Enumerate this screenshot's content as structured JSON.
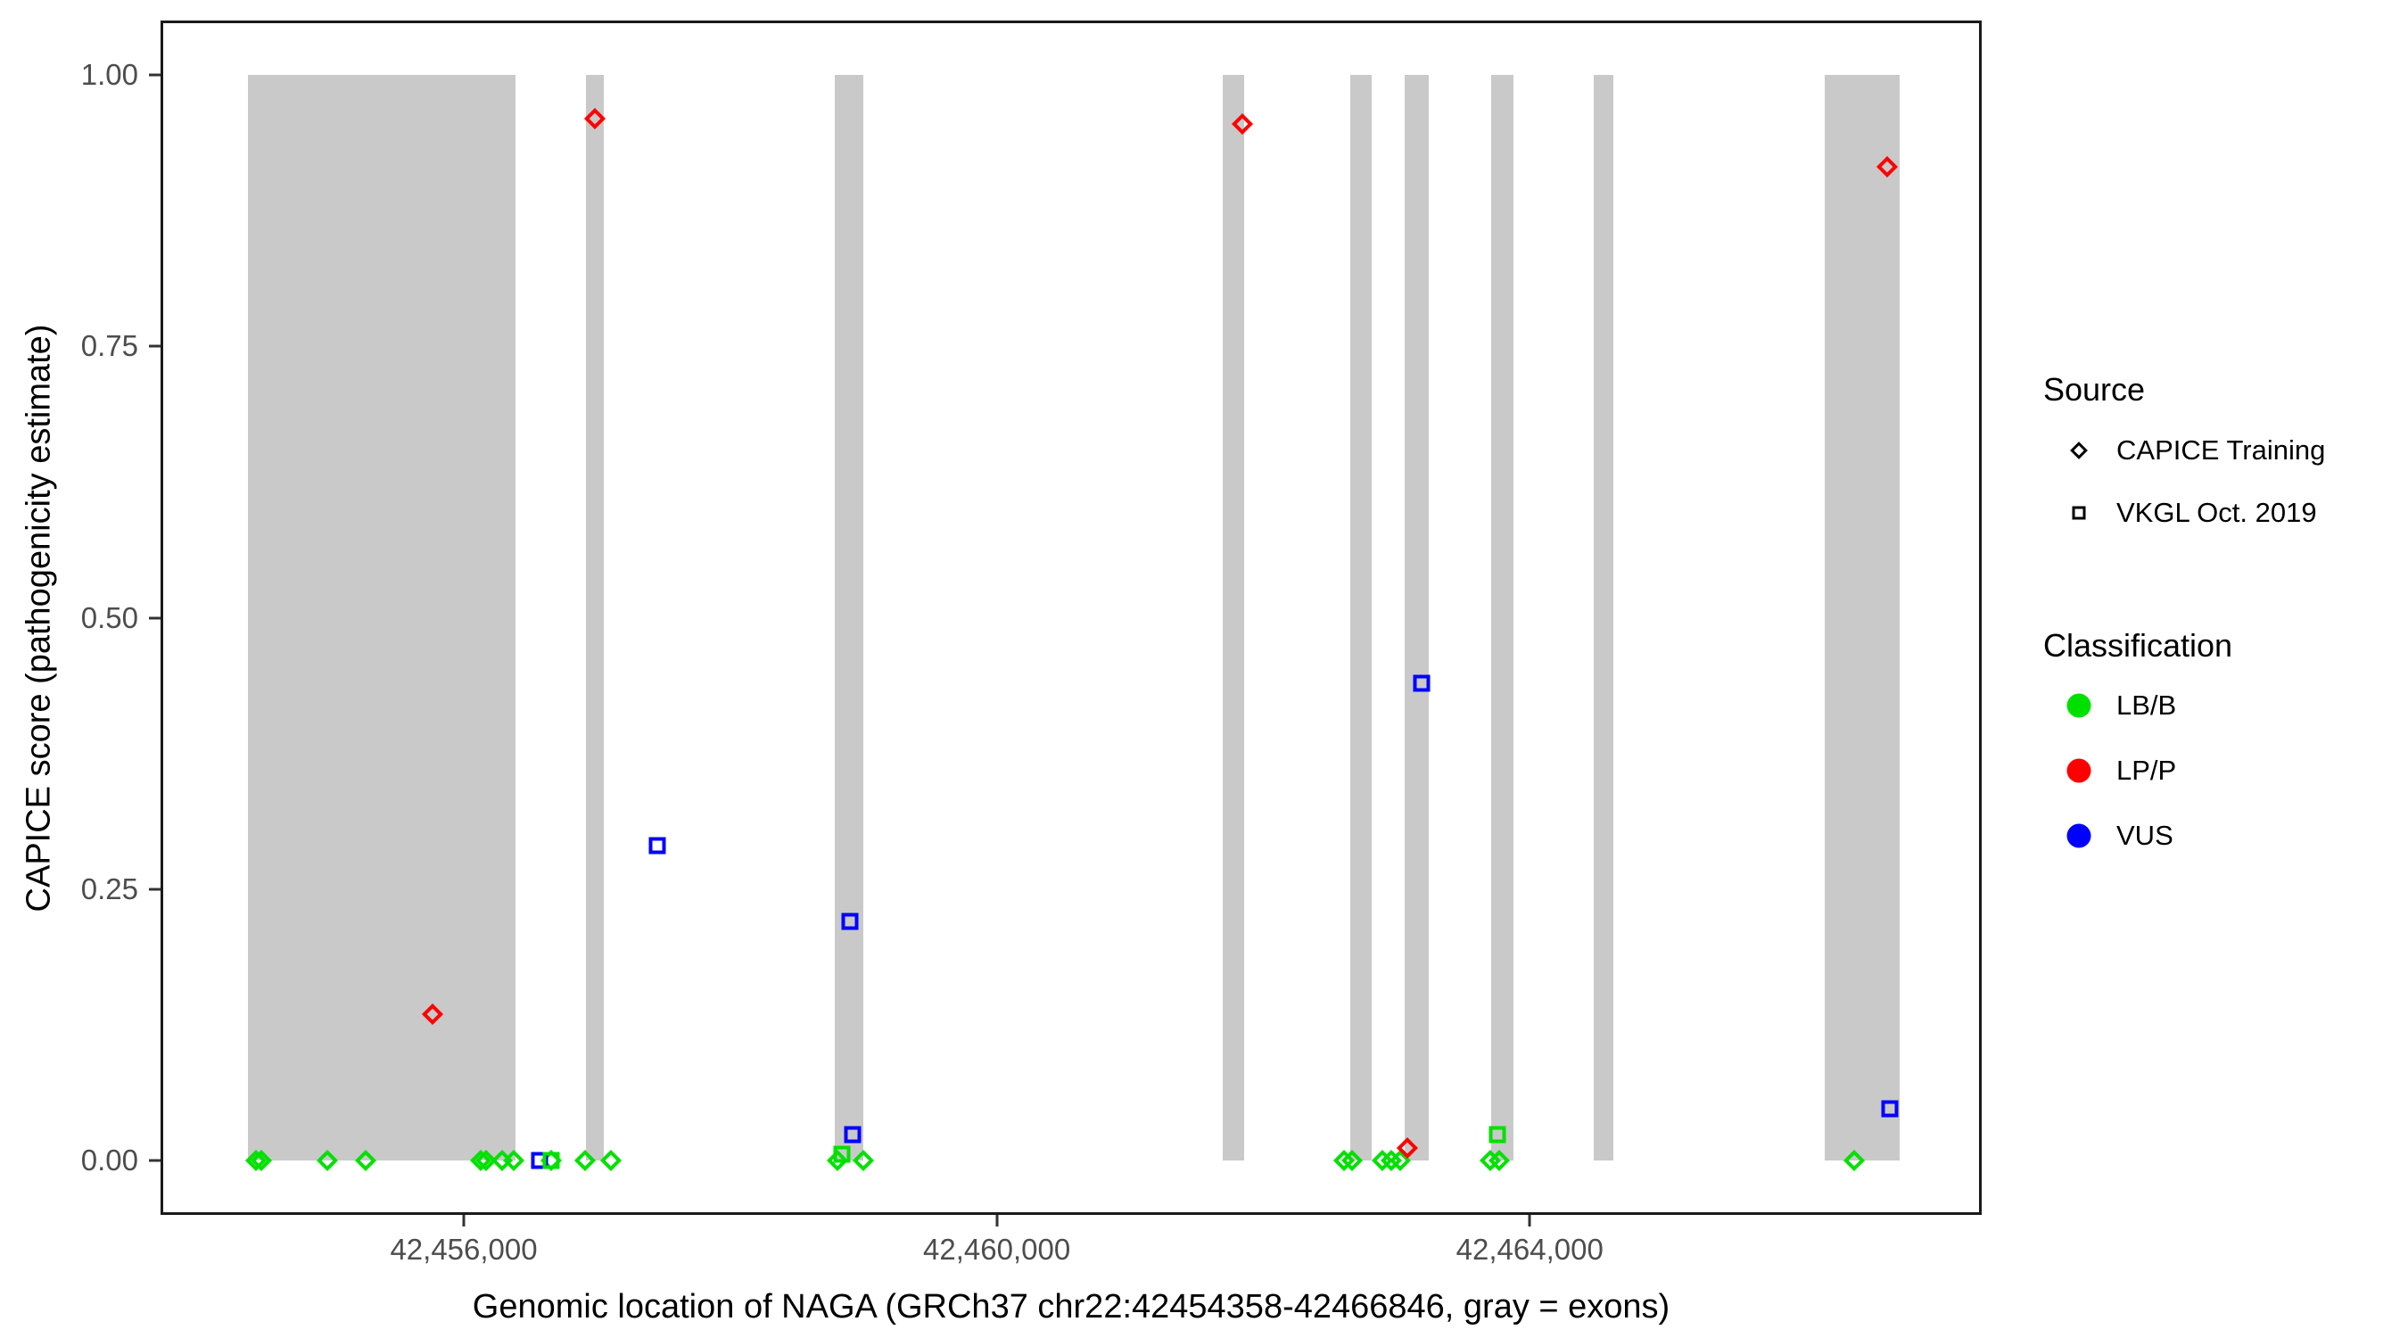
{
  "chart_data": {
    "type": "scatter",
    "x_axis": {
      "label": "Genomic location of NAGA (GRCh37 chr22:42454358-42466846, gray = exons)",
      "range_bp": [
        42453724,
        42467392
      ],
      "ticks": [
        {
          "bp": 42456000,
          "label": "42,456,000"
        },
        {
          "bp": 42460000,
          "label": "42,460,000"
        },
        {
          "bp": 42464000,
          "label": "42,464,000"
        }
      ]
    },
    "y_axis": {
      "label": "CAPICE score (pathogenicity estimate)",
      "range": [
        -0.05,
        1.05
      ],
      "ticks": [
        {
          "v": 0.0,
          "label": "0.00"
        },
        {
          "v": 0.25,
          "label": "0.25"
        },
        {
          "v": 0.5,
          "label": "0.50"
        },
        {
          "v": 0.75,
          "label": "0.75"
        },
        {
          "v": 1.0,
          "label": "1.00"
        }
      ]
    },
    "exon_note": "gray bands = exons of NAGA",
    "exon_color": "#c9c9c9",
    "exons_bp": [
      [
        42454380,
        42456390
      ],
      [
        42456917,
        42457051
      ],
      [
        42458785,
        42459000
      ],
      [
        42461696,
        42461857
      ],
      [
        42462653,
        42462814
      ],
      [
        42463063,
        42463243
      ],
      [
        42463712,
        42463879
      ],
      [
        42464480,
        42464630
      ],
      [
        42466214,
        42466777
      ]
    ],
    "classification_colors": {
      "LB/B": "#00e000",
      "LP/P": "#ff0000",
      "VUS": "#0000ff"
    },
    "series": [
      {
        "name": "CAPICE Training",
        "marker": "diamond",
        "points": [
          {
            "bp": 42454440,
            "score": 0.0,
            "classification": "LB/B"
          },
          {
            "bp": 42454478,
            "score": 0.0,
            "classification": "LB/B"
          },
          {
            "bp": 42454976,
            "score": 0.0,
            "classification": "LB/B"
          },
          {
            "bp": 42455264,
            "score": 0.0,
            "classification": "LB/B"
          },
          {
            "bp": 42456130,
            "score": 0.0,
            "classification": "LB/B"
          },
          {
            "bp": 42456168,
            "score": 0.0,
            "classification": "LB/B"
          },
          {
            "bp": 42456290,
            "score": 0.0,
            "classification": "LB/B"
          },
          {
            "bp": 42456375,
            "score": 0.0,
            "classification": "LB/B"
          },
          {
            "bp": 42456656,
            "score": 0.0,
            "classification": "LB/B"
          },
          {
            "bp": 42456910,
            "score": 0.0,
            "classification": "LB/B"
          },
          {
            "bp": 42457104,
            "score": 0.0,
            "classification": "LB/B"
          },
          {
            "bp": 42458805,
            "score": 0.0,
            "classification": "LB/B"
          },
          {
            "bp": 42458999,
            "score": 0.0,
            "classification": "LB/B"
          },
          {
            "bp": 42462608,
            "score": 0.0,
            "classification": "LB/B"
          },
          {
            "bp": 42462665,
            "score": 0.0,
            "classification": "LB/B"
          },
          {
            "bp": 42462895,
            "score": 0.0,
            "classification": "LB/B"
          },
          {
            "bp": 42462960,
            "score": 0.0,
            "classification": "LB/B"
          },
          {
            "bp": 42463030,
            "score": 0.0,
            "classification": "LB/B"
          },
          {
            "bp": 42463705,
            "score": 0.0,
            "classification": "LB/B"
          },
          {
            "bp": 42463768,
            "score": 0.0,
            "classification": "LB/B"
          },
          {
            "bp": 42466435,
            "score": 0.0,
            "classification": "LB/B"
          },
          {
            "bp": 42455766,
            "score": 0.135,
            "classification": "LP/P"
          },
          {
            "bp": 42456984,
            "score": 0.96,
            "classification": "LP/P"
          },
          {
            "bp": 42461844,
            "score": 0.955,
            "classification": "LP/P"
          },
          {
            "bp": 42463082,
            "score": 0.012,
            "classification": "LP/P"
          },
          {
            "bp": 42466683,
            "score": 0.915,
            "classification": "LP/P"
          }
        ]
      },
      {
        "name": "VKGL Oct. 2019",
        "marker": "square",
        "points": [
          {
            "bp": 42456569,
            "score": 0.0,
            "classification": "VUS"
          },
          {
            "bp": 42456656,
            "score": 0.0,
            "classification": "LB/B"
          },
          {
            "bp": 42457452,
            "score": 0.29,
            "classification": "VUS"
          },
          {
            "bp": 42458838,
            "score": 0.006,
            "classification": "LB/B"
          },
          {
            "bp": 42458898,
            "score": 0.22,
            "classification": "VUS"
          },
          {
            "bp": 42458918,
            "score": 0.024,
            "classification": "VUS"
          },
          {
            "bp": 42463189,
            "score": 0.44,
            "classification": "VUS"
          },
          {
            "bp": 42463758,
            "score": 0.024,
            "classification": "LB/B"
          },
          {
            "bp": 42466703,
            "score": 0.048,
            "classification": "VUS"
          }
        ]
      }
    ],
    "legend": {
      "source_title": "Source",
      "source_items": [
        {
          "label": "CAPICE Training",
          "marker": "diamond"
        },
        {
          "label": "VKGL Oct. 2019",
          "marker": "square"
        }
      ],
      "classification_title": "Classification",
      "classification_items": [
        {
          "label": "LB/B",
          "color": "#00e000"
        },
        {
          "label": "LP/P",
          "color": "#ff0000"
        },
        {
          "label": "VUS",
          "color": "#0000ff"
        }
      ]
    }
  }
}
